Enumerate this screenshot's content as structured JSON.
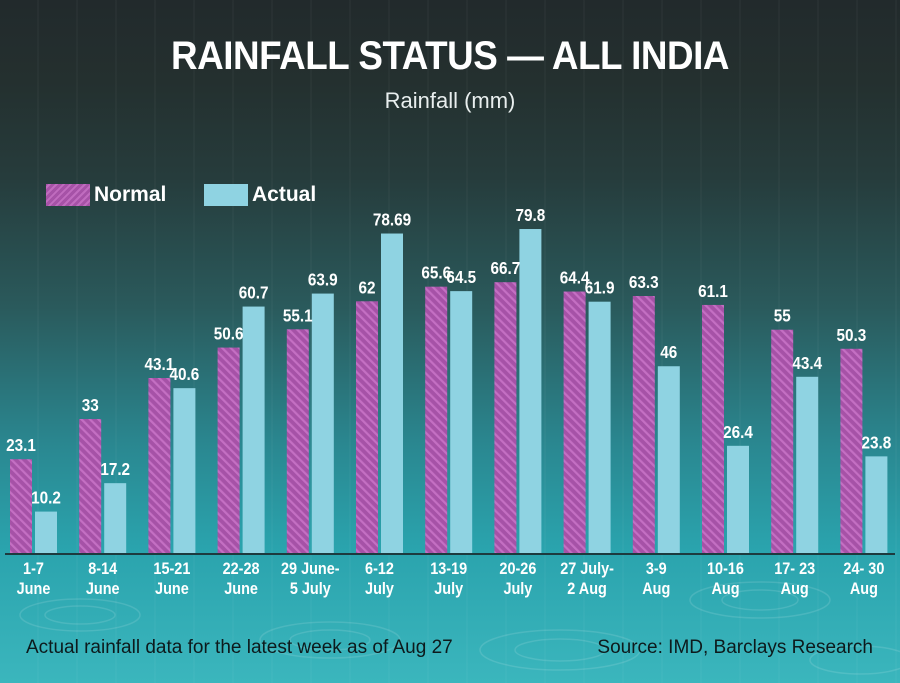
{
  "header": {
    "title": "RAINFALL STATUS — ALL INDIA",
    "subtitle": "Rainfall (mm)"
  },
  "legend": {
    "normal": "Normal",
    "actual": "Actual"
  },
  "colors": {
    "normal": "#a652a7",
    "normal_stripe": "#c06cbf",
    "actual": "#8fd3e2",
    "label_text": "#ffffff",
    "baseline": "#1d3a3e"
  },
  "footer": {
    "note": "Actual rainfall data for the latest week as of Aug 27",
    "source": "Source: IMD, Barclays Research"
  },
  "chart_data": {
    "type": "bar",
    "title": "RAINFALL STATUS — ALL INDIA",
    "subtitle": "Rainfall (mm)",
    "xlabel": "",
    "ylabel": "Rainfall (mm)",
    "ylim": [
      0,
      85
    ],
    "grid": false,
    "legend_position": "top-left",
    "categories": [
      [
        "1-7",
        "June"
      ],
      [
        "8-14",
        "June"
      ],
      [
        "15-21",
        "June"
      ],
      [
        "22-28",
        "June"
      ],
      [
        "29 June-",
        "5 July"
      ],
      [
        "6-12",
        "July"
      ],
      [
        "13-19",
        "July"
      ],
      [
        "20-26",
        "July"
      ],
      [
        "27 July-",
        "2 Aug"
      ],
      [
        "3-9",
        "Aug"
      ],
      [
        "10-16",
        "Aug"
      ],
      [
        "17- 23",
        "Aug"
      ],
      [
        "24- 30",
        "Aug"
      ]
    ],
    "series": [
      {
        "name": "Normal",
        "values": [
          23.1,
          33,
          43.1,
          50.6,
          55.1,
          62,
          65.6,
          66.7,
          64.4,
          63.3,
          61.1,
          55,
          50.3
        ],
        "labels": [
          "23.1",
          "33",
          "43.1",
          "50.6",
          "55.1",
          "62",
          "65.6",
          "66.7",
          "64.4",
          "63.3",
          "61.1",
          "55",
          "50.3"
        ]
      },
      {
        "name": "Actual",
        "values": [
          10.2,
          17.2,
          40.6,
          60.7,
          63.9,
          78.69,
          64.5,
          79.8,
          61.9,
          46,
          26.4,
          43.4,
          23.8
        ],
        "labels": [
          "10.2",
          "17.2",
          "40.6",
          "60.7",
          "63.9",
          "78.69",
          "64.5",
          "79.8",
          "61.9",
          "46",
          "26.4",
          "43.4",
          "23.8"
        ]
      }
    ]
  }
}
